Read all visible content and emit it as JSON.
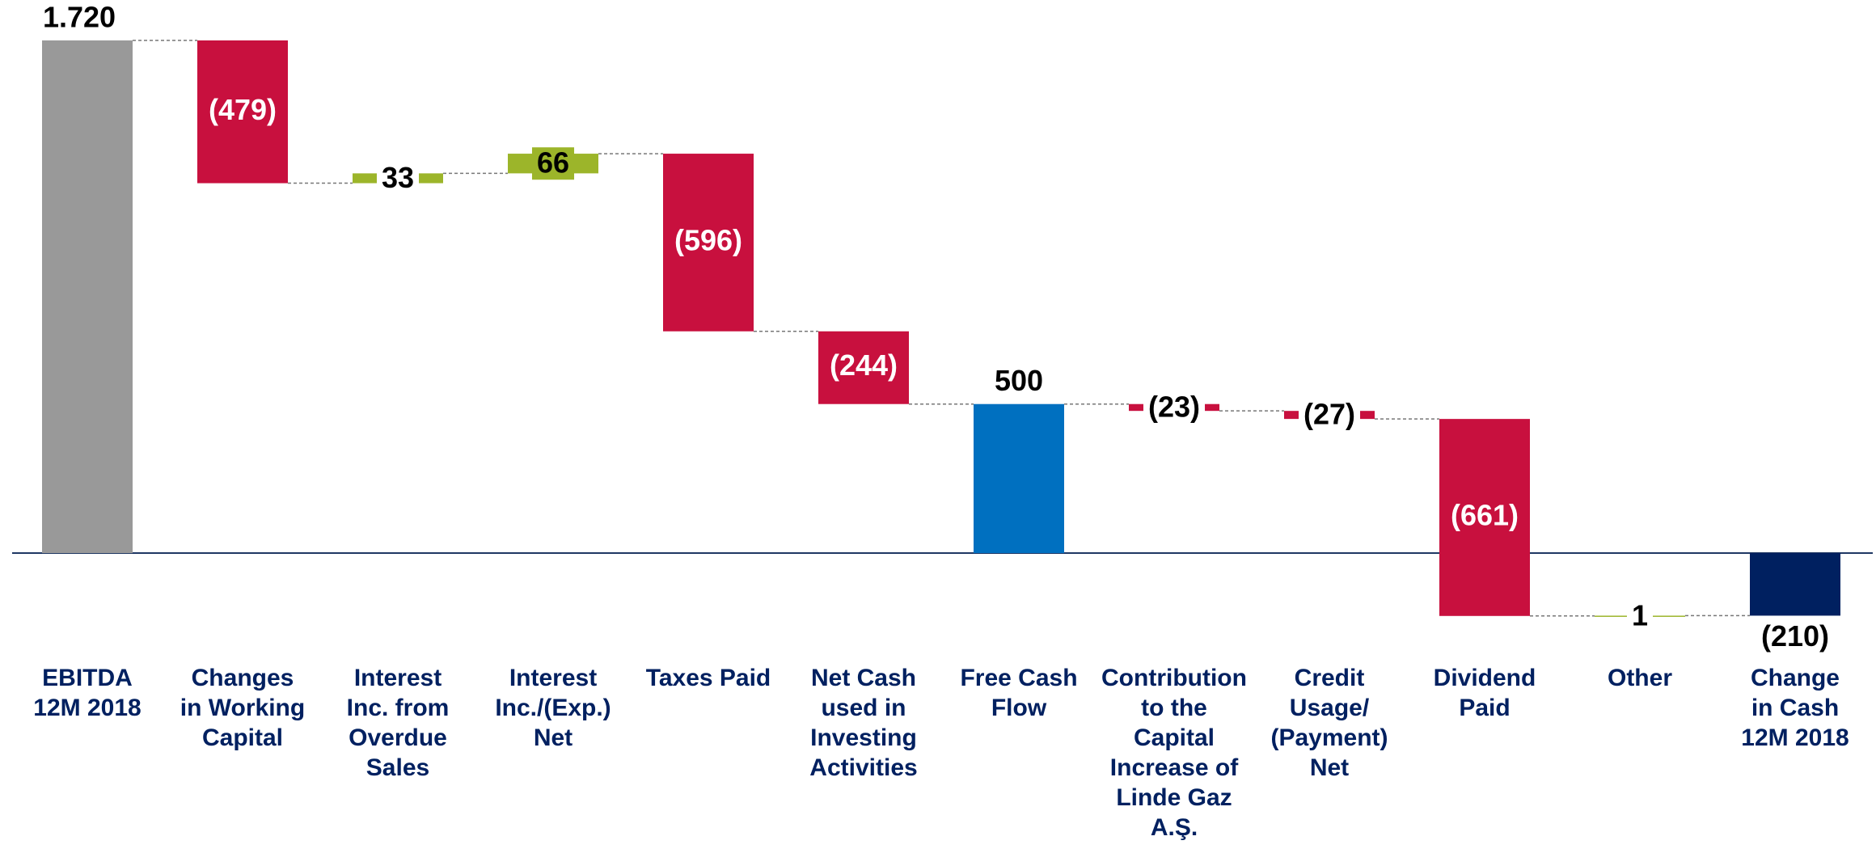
{
  "chart_data": {
    "type": "waterfall",
    "categories": [
      "EBITDA\n12M 2018",
      "Changes\nin Working\nCapital",
      "Interest\nInc. from\nOverdue\nSales",
      "Interest\nInc./(Exp.)\nNet",
      "Taxes Paid",
      "Net Cash\nused in\nInvesting\nActivities",
      "Free Cash\nFlow",
      "Contribution\nto the\nCapital\nIncrease of\nLinde Gaz\nA.Ş.",
      "Credit\nUsage/\n(Payment)\nNet",
      "Dividend\nPaid",
      "Other",
      "Change\nin Cash\n12M 2018"
    ],
    "values": [
      1720,
      -479,
      33,
      66,
      -596,
      -244,
      500,
      -23,
      -27,
      -661,
      1,
      -210
    ],
    "value_labels": [
      "1.720",
      "(479)",
      "33",
      "66",
      "(596)",
      "(244)",
      "500",
      "(23)",
      "(27)",
      "(661)",
      "1",
      "(210)"
    ],
    "measure": [
      "absolute",
      "relative",
      "relative",
      "relative",
      "relative",
      "relative",
      "absolute",
      "relative",
      "relative",
      "relative",
      "relative",
      "absolute"
    ],
    "colors": [
      "#999999",
      "#c8103e",
      "#9cb52a",
      "#9cb52a",
      "#c8103e",
      "#c8103e",
      "#0070c0",
      "#c8103e",
      "#c8103e",
      "#c8103e",
      "#9cb52a",
      "#002060"
    ],
    "ylim": [
      -300,
      1800
    ]
  }
}
